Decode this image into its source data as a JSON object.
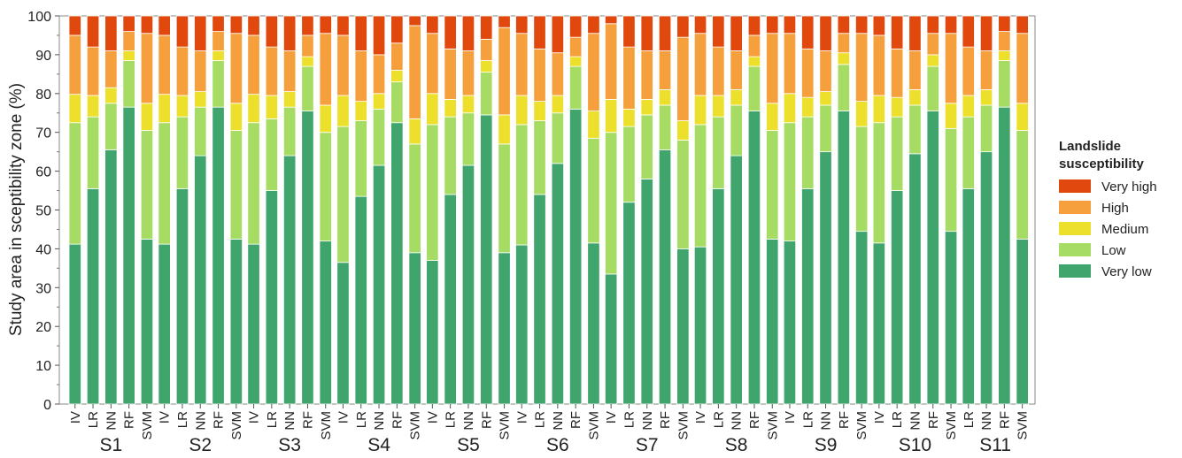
{
  "chart_data": {
    "type": "bar",
    "stacked": true,
    "ylabel": "Study area in sceptibility zone (%)",
    "ylim": [
      0,
      100
    ],
    "yticks": [
      0,
      10,
      20,
      30,
      40,
      50,
      60,
      70,
      80,
      90,
      100
    ],
    "grid": false,
    "legend": {
      "title": [
        "Landslide",
        "susceptibility"
      ],
      "placement": "right",
      "entries": [
        "Very high",
        "High",
        "Medium",
        "Low",
        "Very low"
      ]
    },
    "colors": {
      "Very low": "#3fa56d",
      "Low": "#a6dc63",
      "Medium": "#ede02c",
      "High": "#f5a03c",
      "Very high": "#e0480e"
    },
    "groups": [
      {
        "name": "S1",
        "models": [
          "IV",
          "LR",
          "NN",
          "RF",
          "SVM"
        ],
        "cumulative": [
          [
            41.2,
            72.5,
            79.8,
            95.0
          ],
          [
            55.5,
            74.0,
            79.5,
            92.0
          ],
          [
            65.5,
            77.5,
            81.5,
            91.0
          ],
          [
            76.5,
            88.5,
            91.0,
            96.0
          ],
          [
            42.5,
            70.5,
            77.5,
            95.5
          ]
        ]
      },
      {
        "name": "S2",
        "models": [
          "IV",
          "LR",
          "NN",
          "RF",
          "SVM"
        ],
        "cumulative": [
          [
            41.2,
            72.5,
            79.8,
            95.0
          ],
          [
            55.5,
            74.0,
            79.5,
            92.0
          ],
          [
            64.0,
            76.5,
            80.5,
            91.0
          ],
          [
            76.5,
            88.5,
            91.0,
            96.0
          ],
          [
            42.5,
            70.5,
            77.5,
            95.5
          ]
        ]
      },
      {
        "name": "S3",
        "models": [
          "IV",
          "LR",
          "NN",
          "RF",
          "SVM"
        ],
        "cumulative": [
          [
            41.2,
            72.5,
            79.8,
            95.0
          ],
          [
            55.0,
            73.5,
            79.5,
            92.0
          ],
          [
            64.0,
            76.5,
            80.5,
            91.0
          ],
          [
            75.5,
            87.0,
            89.5,
            95.0
          ],
          [
            42.0,
            70.0,
            77.0,
            95.5
          ]
        ]
      },
      {
        "name": "S4",
        "models": [
          "IV",
          "LR",
          "NN",
          "RF",
          "SVM"
        ],
        "cumulative": [
          [
            36.5,
            71.5,
            79.5,
            95.0
          ],
          [
            53.5,
            73.0,
            78.0,
            91.0
          ],
          [
            61.5,
            76.0,
            80.0,
            90.0
          ],
          [
            72.5,
            83.0,
            86.0,
            93.0
          ],
          [
            39.0,
            67.0,
            73.5,
            97.5
          ]
        ]
      },
      {
        "name": "S5",
        "models": [
          "IV",
          "LR",
          "NN",
          "RF",
          "SVM"
        ],
        "cumulative": [
          [
            37.0,
            72.0,
            80.0,
            95.5
          ],
          [
            54.0,
            74.0,
            78.5,
            91.5
          ],
          [
            61.5,
            75.0,
            79.5,
            91.0
          ],
          [
            74.5,
            85.5,
            88.5,
            94.0
          ],
          [
            39.0,
            67.0,
            74.5,
            97.0
          ]
        ]
      },
      {
        "name": "S6",
        "models": [
          "IV",
          "LR",
          "NN",
          "RF",
          "SVM"
        ],
        "cumulative": [
          [
            41.0,
            72.0,
            79.5,
            95.5
          ],
          [
            54.0,
            73.0,
            78.0,
            91.5
          ],
          [
            62.0,
            75.0,
            79.5,
            90.5
          ],
          [
            76.0,
            87.0,
            89.5,
            94.5
          ],
          [
            41.5,
            68.5,
            75.5,
            95.5
          ]
        ]
      },
      {
        "name": "S7",
        "models": [
          "IV",
          "LR",
          "NN",
          "RF",
          "SVM"
        ],
        "cumulative": [
          [
            33.5,
            70.0,
            78.5,
            98.0
          ],
          [
            52.0,
            71.5,
            76.0,
            92.0
          ],
          [
            58.0,
            74.5,
            78.5,
            91.0
          ],
          [
            65.5,
            77.0,
            81.0,
            91.0
          ],
          [
            40.0,
            68.0,
            73.0,
            94.5
          ]
        ]
      },
      {
        "name": "S8",
        "models": [
          "IV",
          "LR",
          "NN",
          "RF",
          "SVM"
        ],
        "cumulative": [
          [
            40.5,
            72.0,
            79.5,
            95.5
          ],
          [
            55.5,
            74.0,
            79.5,
            92.0
          ],
          [
            64.0,
            77.0,
            81.0,
            91.0
          ],
          [
            75.5,
            87.0,
            89.5,
            95.0
          ],
          [
            42.5,
            70.5,
            77.5,
            95.5
          ]
        ]
      },
      {
        "name": "S9",
        "models": [
          "IV",
          "LR",
          "NN",
          "RF",
          "SVM"
        ],
        "cumulative": [
          [
            42.0,
            72.5,
            80.0,
            95.5
          ],
          [
            55.5,
            74.0,
            79.0,
            91.5
          ],
          [
            65.0,
            77.0,
            80.5,
            91.0
          ],
          [
            75.5,
            87.5,
            90.5,
            95.5
          ],
          [
            44.5,
            71.5,
            78.0,
            95.5
          ]
        ]
      },
      {
        "name": "S10",
        "models": [
          "IV",
          "LR",
          "NN",
          "RF",
          "SVM"
        ],
        "cumulative": [
          [
            41.5,
            72.5,
            79.5,
            95.0
          ],
          [
            55.0,
            74.0,
            79.0,
            91.5
          ],
          [
            64.5,
            77.0,
            81.0,
            91.0
          ],
          [
            75.5,
            87.0,
            90.0,
            95.5
          ],
          [
            44.5,
            71.0,
            77.5,
            95.5
          ]
        ]
      },
      {
        "name": "S11",
        "models": [
          "LR",
          "NN",
          "RF",
          "SVM"
        ],
        "cumulative": [
          [
            55.5,
            74.0,
            79.5,
            92.0
          ],
          [
            65.0,
            77.0,
            81.0,
            91.0
          ],
          [
            76.5,
            88.5,
            91.0,
            96.0
          ],
          [
            42.5,
            70.5,
            77.5,
            95.5
          ]
        ]
      }
    ]
  }
}
